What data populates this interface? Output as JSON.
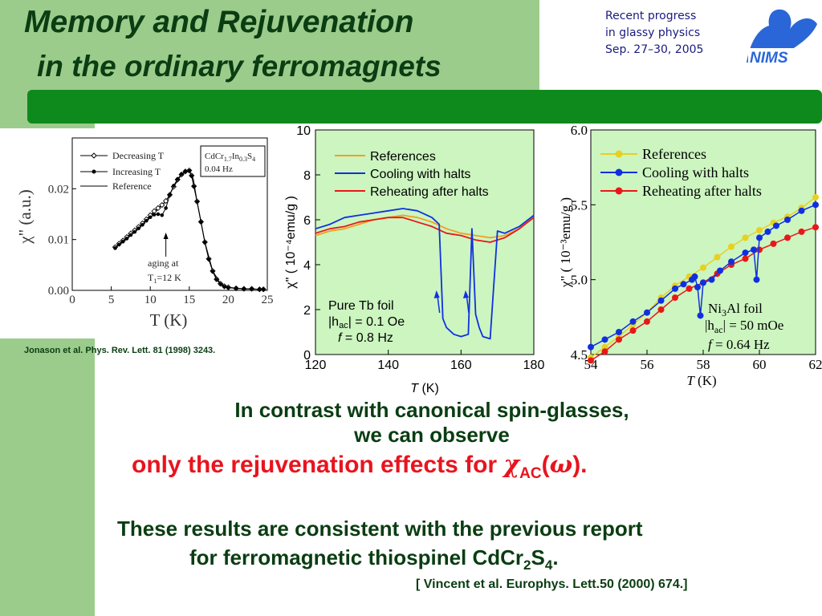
{
  "header": {
    "title_line1": "Memory and Rejuvenation",
    "title_line2": "in the ordinary ferromagnets",
    "conference": [
      "Recent progress",
      "in glassy physics",
      "Sep. 27–30, 2005"
    ],
    "logo_text": "NIMS"
  },
  "colors": {
    "sidebar": "#9ccc8c",
    "band": "#0e8a1c",
    "title_text": "#0a3d12",
    "highlight": "#e8141e",
    "plot_bg": "#ccf5c0",
    "references": "#f0a020",
    "cooling": "#1030e0",
    "reheating": "#e81818",
    "references_right": "#e8d020"
  },
  "left_citation": "Jonason et al. Phys. Rev. Lett. 81 (1998) 3243.",
  "body": {
    "line1": "In contrast with canonical spin-glasses,",
    "line2": "we can observe",
    "line3_pre": "only the rejuvenation effects for ",
    "chi": "χ",
    "ac_sub": "AC",
    "paren_open": "(",
    "omega": "ω",
    "paren_close": ").",
    "line4": "These results are consistent with the previous report",
    "line5_pre": "for ferromagnetic thiospinel CdCr",
    "sub2": "2",
    "s_letter": "S",
    "sub4": "4",
    "line5_end": ".",
    "citation": "[ Vincent et al. Europhys. Lett.50 (2000) 674.]"
  },
  "chart_data": [
    {
      "type": "scatter",
      "xlabel": "T (K)",
      "ylabel": "χ\" (a.u.)",
      "xlim": [
        0,
        25
      ],
      "ylim": [
        0,
        0.03
      ],
      "xticks": [
        "0",
        "5",
        "10",
        "15",
        "20",
        "25"
      ],
      "yticks": [
        "0.00",
        "0.01",
        "0.02"
      ],
      "legend": [
        "Decreasing T",
        "Increasing T",
        "Reference"
      ],
      "sample_label": [
        "CdCr",
        "1.7",
        "In",
        "0.3",
        "S",
        "4",
        "0.04 Hz"
      ],
      "annotation": [
        "aging at",
        "T",
        "1",
        "=12 K"
      ],
      "aging_T": 12,
      "series": [
        {
          "name": "Decreasing T",
          "x": [
            5.5,
            6,
            6.5,
            7,
            7.5,
            8,
            8.5,
            9,
            9.5,
            10,
            10.5,
            11,
            11.5,
            12,
            12.5,
            13,
            13.5,
            14,
            14.5,
            15,
            15.3,
            15.6,
            16,
            16.5,
            17,
            17.5,
            18,
            18.5,
            19,
            19.5,
            20,
            21,
            22,
            23,
            24,
            24.5
          ],
          "values": [
            0.0085,
            0.0092,
            0.0098,
            0.0105,
            0.0112,
            0.0118,
            0.0125,
            0.0132,
            0.014,
            0.0148,
            0.0156,
            0.0162,
            0.0168,
            0.0176,
            0.0188,
            0.0204,
            0.0218,
            0.0228,
            0.0234,
            0.0236,
            0.0226,
            0.0205,
            0.0175,
            0.0135,
            0.0095,
            0.0062,
            0.0038,
            0.0022,
            0.0013,
            0.0008,
            0.0006,
            0.0004,
            0.0003,
            0.0003,
            0.0002,
            0.0002
          ]
        },
        {
          "name": "Increasing T",
          "x": [
            5.5,
            6,
            6.5,
            7,
            7.5,
            8,
            8.5,
            9,
            9.5,
            10,
            10.5,
            11,
            11.5,
            12,
            12.5,
            13,
            13.5,
            14,
            14.5,
            15,
            15.3,
            15.6,
            16,
            16.5,
            17,
            17.5,
            18,
            18.5,
            19,
            19.5,
            20,
            21,
            22,
            23,
            24,
            24.5
          ],
          "values": [
            0.0083,
            0.009,
            0.0096,
            0.0102,
            0.0109,
            0.0115,
            0.0122,
            0.0129,
            0.0137,
            0.0144,
            0.0149,
            0.015,
            0.0148,
            0.0162,
            0.0188,
            0.0206,
            0.0219,
            0.0229,
            0.0234,
            0.0235,
            0.0225,
            0.0204,
            0.0174,
            0.0134,
            0.0094,
            0.0061,
            0.0037,
            0.0021,
            0.0012,
            0.0007,
            0.0005,
            0.0004,
            0.0003,
            0.0003,
            0.0002,
            0.0002
          ]
        },
        {
          "name": "Reference",
          "x": [
            5.5,
            7,
            9,
            10,
            11,
            12,
            13,
            14,
            15,
            15.5,
            16,
            17,
            18,
            19,
            20,
            22,
            24.5
          ],
          "values": [
            0.0084,
            0.0104,
            0.013,
            0.0146,
            0.016,
            0.0175,
            0.0204,
            0.0228,
            0.0236,
            0.022,
            0.0175,
            0.0095,
            0.0038,
            0.0013,
            0.0006,
            0.0003,
            0.0002
          ]
        }
      ]
    },
    {
      "type": "line",
      "xlabel": "T (K)",
      "ylabel": "χ\" ( 10⁻⁴emu/g )",
      "xlim": [
        120,
        180
      ],
      "ylim": [
        0,
        10
      ],
      "xticks": [
        "120",
        "140",
        "160",
        "180"
      ],
      "yticks": [
        "0",
        "2",
        "4",
        "6",
        "8",
        "10"
      ],
      "legend": [
        "References",
        "Cooling with halts",
        "Reheating after halts"
      ],
      "sample_label": [
        "Pure Tb foil",
        "|h",
        "ac",
        "| = 0.1 Oe",
        "f",
        " = 0.8 Hz"
      ],
      "halt_temperatures": [
        155,
        163
      ],
      "series": [
        {
          "name": "References",
          "x": [
            120,
            124,
            128,
            132,
            136,
            140,
            144,
            148,
            152,
            156,
            160,
            164,
            168,
            172,
            176,
            180
          ],
          "values": [
            5.3,
            5.5,
            5.6,
            5.8,
            6,
            6.1,
            6.2,
            6.1,
            5.9,
            5.6,
            5.4,
            5.3,
            5.2,
            5.3,
            5.6,
            6.2
          ]
        },
        {
          "name": "Cooling with halts",
          "x": [
            120,
            124,
            128,
            132,
            136,
            140,
            144,
            148,
            152,
            154,
            155,
            156,
            158,
            160,
            162,
            163,
            164,
            165,
            166,
            168,
            170,
            172,
            176,
            180
          ],
          "values": [
            5.6,
            5.8,
            6.1,
            6.2,
            6.3,
            6.4,
            6.5,
            6.4,
            6.1,
            5.8,
            1.6,
            1.2,
            0.9,
            0.8,
            0.9,
            5.6,
            1.8,
            1.2,
            0.8,
            0.7,
            5.5,
            5.4,
            5.7,
            6.2
          ]
        },
        {
          "name": "Reheating after halts",
          "x": [
            120,
            124,
            128,
            132,
            136,
            140,
            144,
            148,
            152,
            156,
            160,
            164,
            168,
            172,
            176,
            180
          ],
          "values": [
            5.4,
            5.6,
            5.7,
            5.9,
            6,
            6.1,
            6.1,
            5.9,
            5.7,
            5.4,
            5.3,
            5.1,
            5,
            5.2,
            5.6,
            6.1
          ]
        }
      ]
    },
    {
      "type": "line",
      "xlabel": "T (K)",
      "ylabel": "χ\" ( 10⁻³emu/g )",
      "xlim": [
        54,
        62
      ],
      "ylim": [
        4.5,
        6
      ],
      "xticks": [
        "54",
        "56",
        "58",
        "60",
        "62"
      ],
      "yticks": [
        "4.5",
        "5.0",
        "5.5",
        "6.0"
      ],
      "legend": [
        "References",
        "Cooling with halts",
        "Reheating after halts"
      ],
      "sample_label": [
        "Ni",
        "3",
        "Al foil",
        "|h",
        "ac",
        "| = 50 mOe",
        "f",
        " = 0.64 Hz"
      ],
      "halt_temperatures": [
        57.8,
        59.9
      ],
      "series": [
        {
          "name": "References",
          "x": [
            54,
            54.5,
            55,
            55.5,
            56,
            56.5,
            57,
            57.5,
            58,
            58.5,
            59,
            59.5,
            60,
            60.5,
            61,
            61.5,
            62
          ],
          "values": [
            4.48,
            4.55,
            4.62,
            4.7,
            4.78,
            4.88,
            4.96,
            5.02,
            5.08,
            5.15,
            5.22,
            5.28,
            5.33,
            5.38,
            5.42,
            5.48,
            5.55
          ]
        },
        {
          "name": "Cooling with halts",
          "x": [
            54,
            54.5,
            55,
            55.5,
            56,
            56.5,
            57,
            57.3,
            57.6,
            57.7,
            57.8,
            57.9,
            58,
            58.3,
            58.6,
            59,
            59.5,
            59.8,
            59.9,
            60,
            60.3,
            60.6,
            61,
            61.5,
            62
          ],
          "values": [
            4.55,
            4.6,
            4.65,
            4.72,
            4.78,
            4.86,
            4.94,
            4.97,
            5,
            5.02,
            4.95,
            4.76,
            4.98,
            5,
            5.06,
            5.12,
            5.18,
            5.2,
            5.0,
            5.28,
            5.32,
            5.36,
            5.4,
            5.46,
            5.5
          ]
        },
        {
          "name": "Reheating after halts",
          "x": [
            54,
            54.5,
            55,
            55.5,
            56,
            56.5,
            57,
            57.5,
            58,
            58.5,
            59,
            59.5,
            60,
            60.5,
            61,
            61.5,
            62
          ],
          "values": [
            4.46,
            4.52,
            4.6,
            4.66,
            4.72,
            4.8,
            4.88,
            4.94,
            4.98,
            5.04,
            5.1,
            5.14,
            5.2,
            5.24,
            5.28,
            5.32,
            5.35
          ]
        }
      ]
    }
  ]
}
